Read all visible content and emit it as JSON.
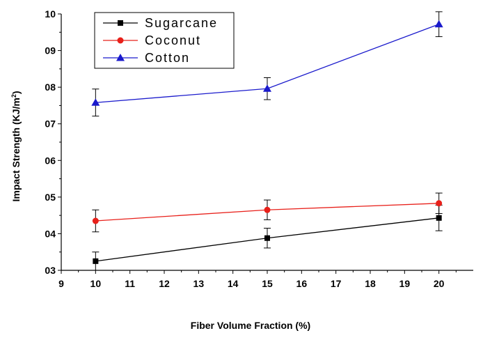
{
  "chart_data": {
    "type": "line",
    "xlabel": "Fiber Volume Fraction (%)",
    "ylabel_main": "Impact Strength (KJ/m",
    "ylabel_sup": "2",
    "ylabel_end": ")",
    "xlim": [
      9,
      21
    ],
    "ylim": [
      3,
      10
    ],
    "x_ticks": [
      9,
      10,
      11,
      12,
      13,
      14,
      15,
      16,
      17,
      18,
      19,
      20
    ],
    "x_tick_labels": [
      "9",
      "10",
      "11",
      "12",
      "13",
      "14",
      "15",
      "16",
      "17",
      "18",
      "19",
      "20"
    ],
    "y_ticks": [
      3,
      4,
      5,
      6,
      7,
      8,
      9,
      10
    ],
    "y_tick_labels": [
      "03",
      "04",
      "05",
      "06",
      "07",
      "08",
      "09",
      "10"
    ],
    "grid": false,
    "legend_position": "top-left",
    "series": [
      {
        "name": "Sugarcane",
        "color": "#000000",
        "marker": "square",
        "x": [
          10,
          15,
          20
        ],
        "y": [
          3.25,
          3.88,
          4.43
        ],
        "err": [
          0.25,
          0.27,
          0.35
        ]
      },
      {
        "name": "Coconut",
        "color": "#e8201a",
        "marker": "circle",
        "x": [
          10,
          15,
          20
        ],
        "y": [
          4.35,
          4.65,
          4.83
        ],
        "err": [
          0.3,
          0.27,
          0.28
        ]
      },
      {
        "name": "Cotton",
        "color": "#1a1acc",
        "marker": "triangle",
        "x": [
          10,
          15,
          20
        ],
        "y": [
          7.58,
          7.96,
          9.72
        ],
        "err": [
          0.37,
          0.3,
          0.34
        ]
      }
    ]
  }
}
